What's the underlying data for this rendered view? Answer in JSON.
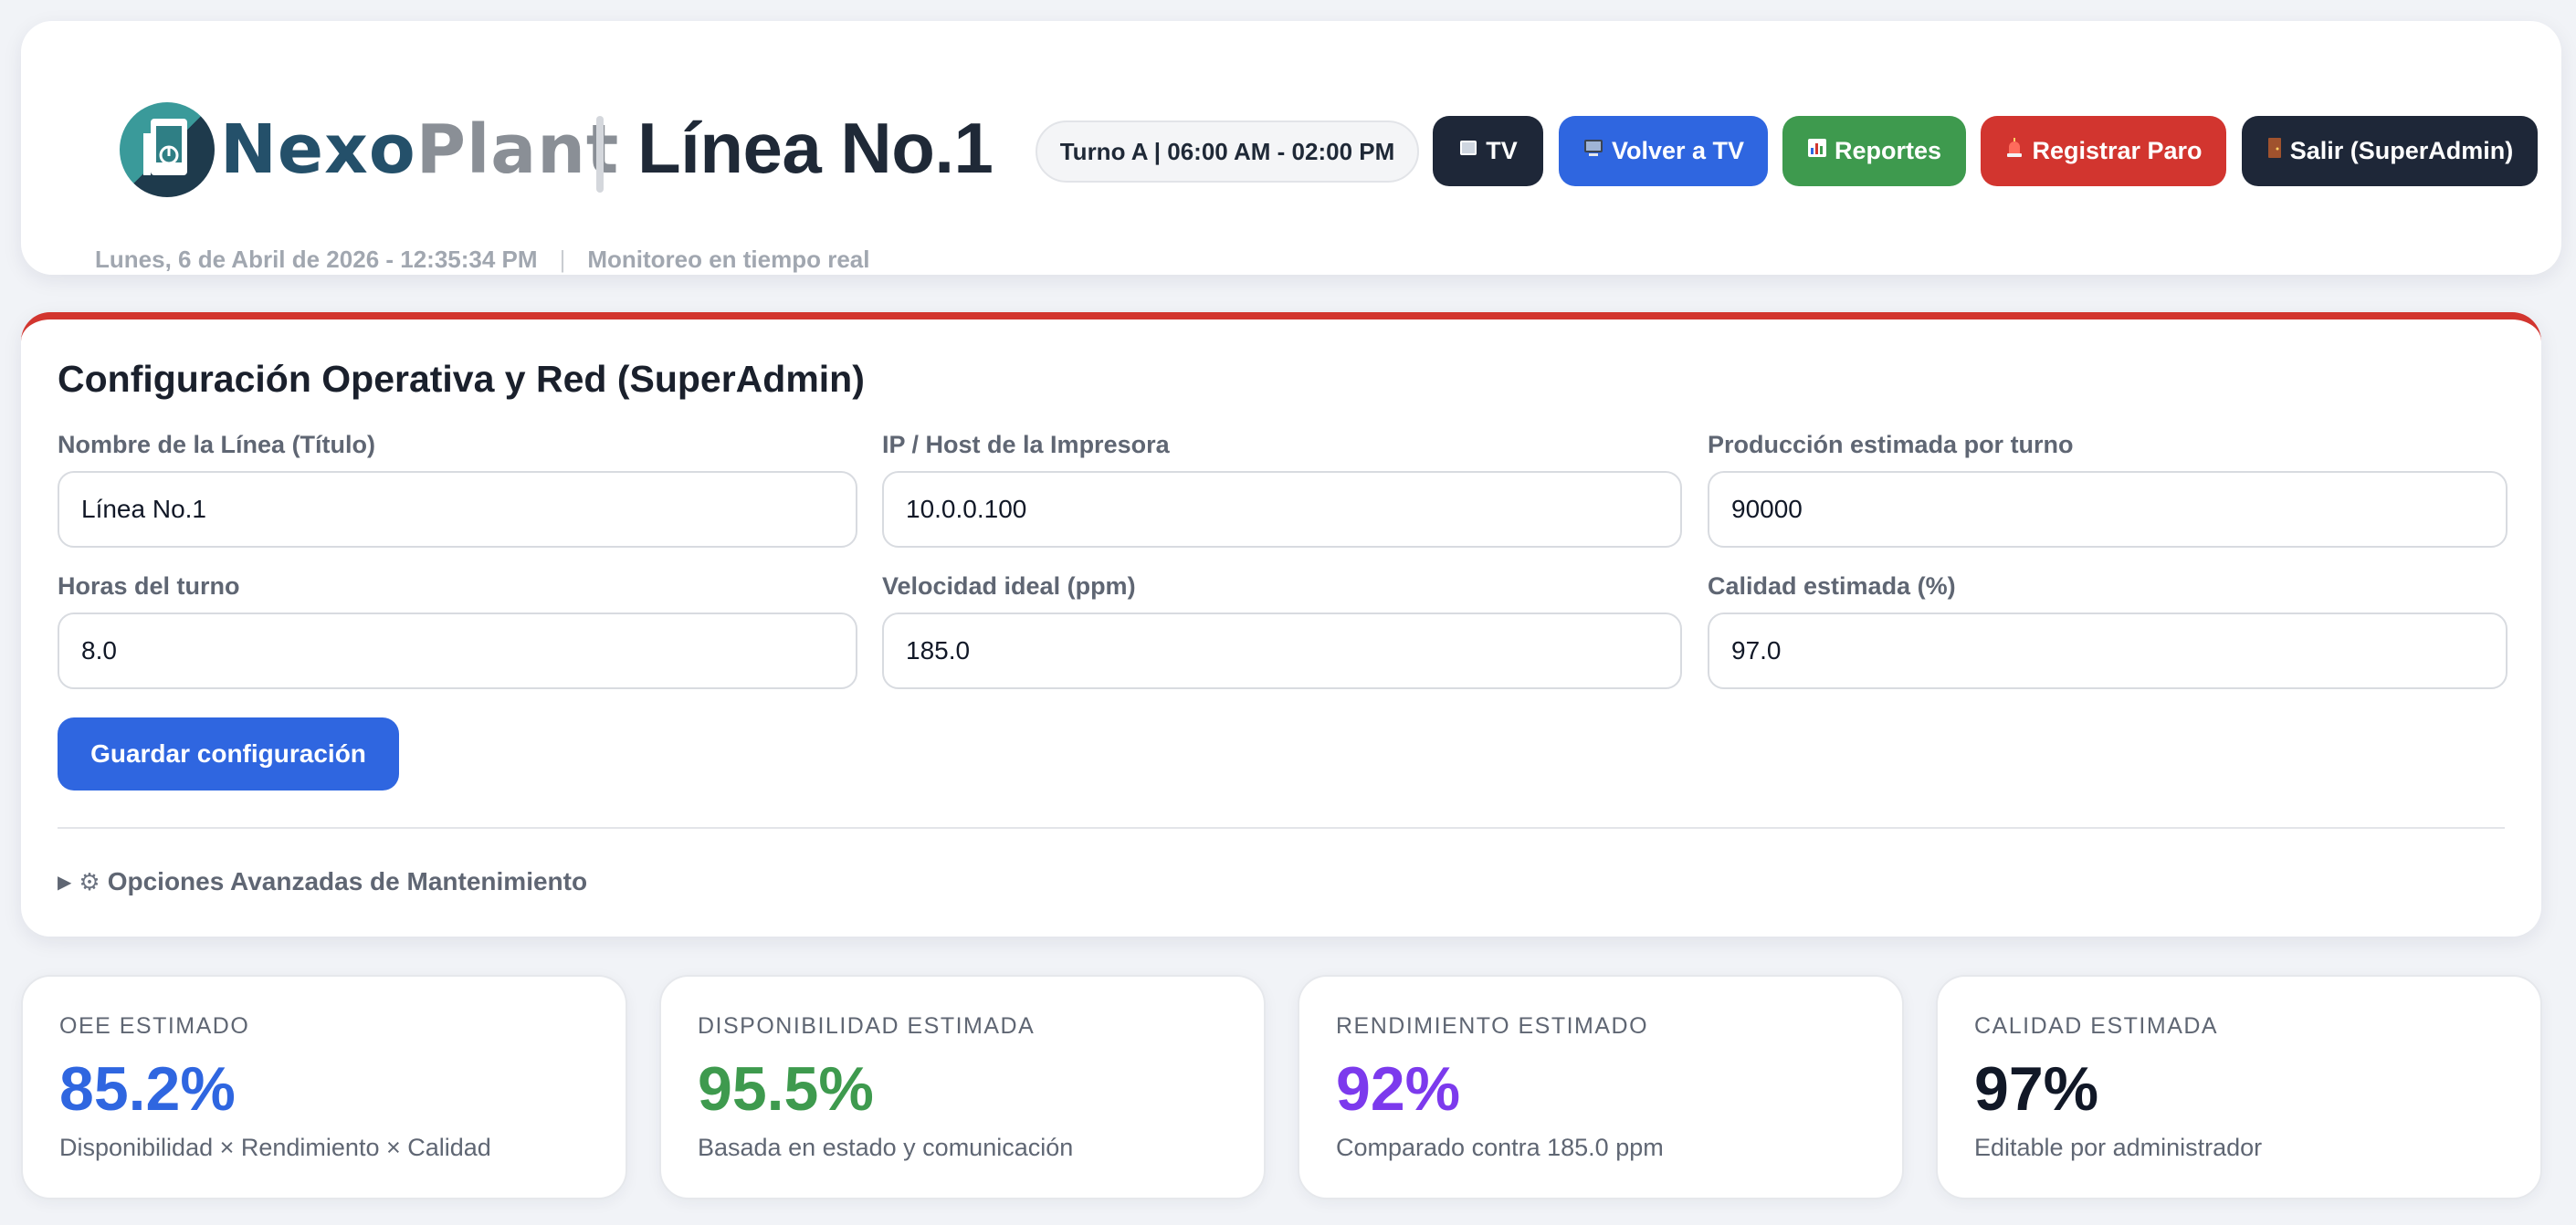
{
  "header": {
    "brand_part1": "Nexo",
    "brand_part2": "Plant",
    "line_title": "Línea No.1",
    "shift": "Turno A | 06:00 AM - 02:00 PM",
    "buttons": {
      "tv": "TV",
      "volver_tv": "Volver a TV",
      "reportes": "Reportes",
      "registrar_paro": "Registrar Paro",
      "salir": "Salir (SuperAdmin)"
    },
    "datetime": "Lunes, 6 de Abril de 2026 - 12:35:34 PM",
    "separator": "|",
    "status": "Monitoreo en tiempo real",
    "icons": {
      "tv": "tv-screen-icon",
      "volver_tv": "monitor-icon",
      "reportes": "bar-chart-icon",
      "registrar_paro": "alarm-light-icon",
      "salir": "door-icon"
    }
  },
  "config": {
    "title": "Configuración Operativa y Red (SuperAdmin)",
    "fields": [
      {
        "label": "Nombre de la Línea (Título)",
        "value": "Línea No.1"
      },
      {
        "label": "IP / Host de la Impresora",
        "value": "10.0.0.100"
      },
      {
        "label": "Producción estimada por turno",
        "value": "90000"
      },
      {
        "label": "Horas del turno",
        "value": "8.0"
      },
      {
        "label": "Velocidad ideal (ppm)",
        "value": "185.0"
      },
      {
        "label": "Calidad estimada (%)",
        "value": "97.0"
      }
    ],
    "save_label": "Guardar configuración",
    "advanced_label": "Opciones Avanzadas de Mantenimiento",
    "advanced_triangle": "▶",
    "advanced_icon": "gear-icon"
  },
  "kpis": [
    {
      "label": "OEE ESTIMADO",
      "value": "85.2%",
      "sub": "Disponibilidad × Rendimiento × Calidad",
      "color": "#2f66e0"
    },
    {
      "label": "DISPONIBILIDAD ESTIMADA",
      "value": "95.5%",
      "sub": "Basada en estado y comunicación",
      "color": "#3e9a4e"
    },
    {
      "label": "RENDIMIENTO ESTIMADO",
      "value": "92%",
      "sub": "Comparado contra 185.0 ppm",
      "color": "#7c3aed"
    },
    {
      "label": "CALIDAD ESTIMADA",
      "value": "97%",
      "sub": "Editable por administrador",
      "color": "#111827"
    }
  ],
  "colors": {
    "accent_blue": "#2f66e0",
    "accent_green": "#3e9a4e",
    "accent_red": "#d2352f",
    "dark": "#1e2738"
  }
}
